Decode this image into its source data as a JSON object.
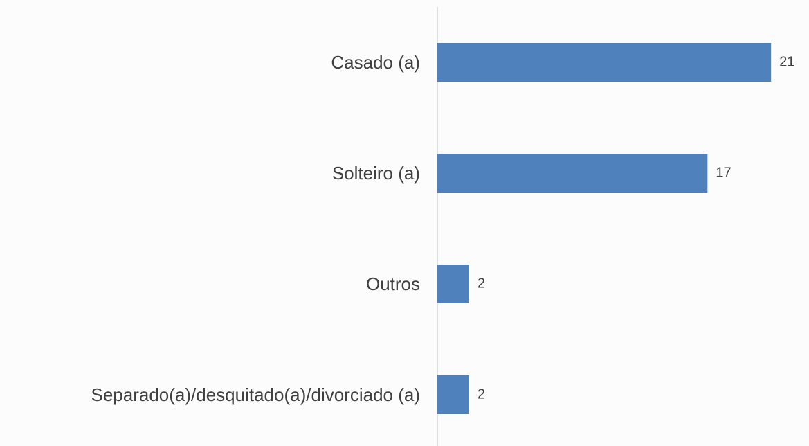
{
  "chart_data": {
    "type": "bar",
    "orientation": "horizontal",
    "categories": [
      "Casado (a)",
      "Solteiro (a)",
      "Outros",
      "Separado(a)/desquitado(a)/divorciado (a)"
    ],
    "values": [
      21,
      17,
      2,
      2
    ],
    "color": "#4f81bd",
    "xlim": [
      0,
      23.3
    ]
  }
}
